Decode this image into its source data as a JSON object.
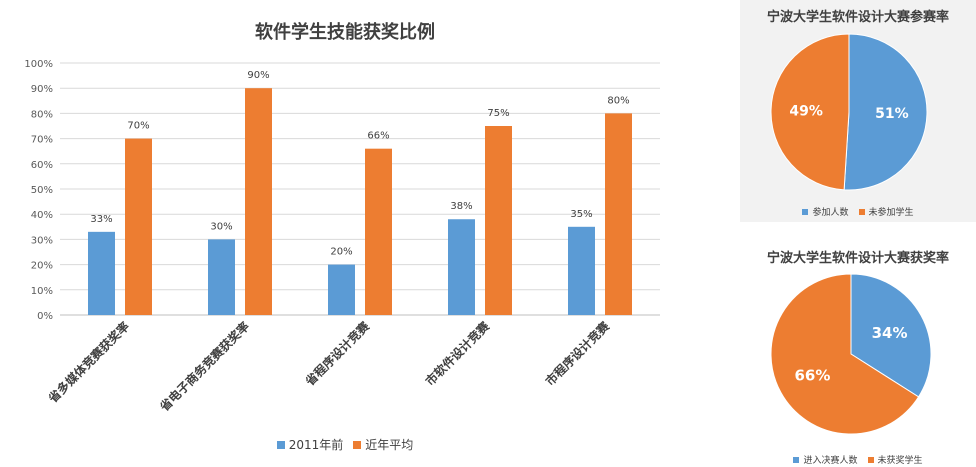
{
  "colors": {
    "blue": "#5b9bd5",
    "orange": "#ed7d31"
  },
  "chart_data": [
    {
      "type": "bar",
      "title": "软件学生技能获奖比例",
      "categories": [
        "省多媒体竞赛获奖率",
        "省电子商务竞赛获奖率",
        "省程序设计竞赛",
        "市软件设计竞赛",
        "市程序设计竞赛"
      ],
      "series": [
        {
          "name": "2011年前",
          "values": [
            33,
            30,
            20,
            38,
            35
          ],
          "color": "#5b9bd5"
        },
        {
          "name": "近年平均",
          "values": [
            70,
            90,
            66,
            75,
            80
          ],
          "color": "#ed7d31"
        }
      ],
      "yticks": [
        "0%",
        "10%",
        "20%",
        "30%",
        "40%",
        "50%",
        "60%",
        "70%",
        "80%",
        "90%",
        "100%"
      ],
      "ylim": [
        0,
        100
      ],
      "grid": true,
      "legend": "bottom"
    },
    {
      "type": "pie",
      "title": "宁波大学生软件设计大赛参赛率",
      "slices": [
        {
          "label": "参加人数",
          "value": 51,
          "text": "51%",
          "color": "#5b9bd5"
        },
        {
          "label": "未参加学生",
          "value": 49,
          "text": "49%",
          "color": "#ed7d31"
        }
      ],
      "legend": "bottom"
    },
    {
      "type": "pie",
      "title": "宁波大学生软件设计大赛获奖率",
      "slices": [
        {
          "label": "进入决赛人数",
          "value": 34,
          "text": "34%",
          "color": "#5b9bd5"
        },
        {
          "label": "未获奖学生",
          "value": 66,
          "text": "66%",
          "color": "#ed7d31"
        }
      ],
      "legend": "bottom"
    }
  ]
}
